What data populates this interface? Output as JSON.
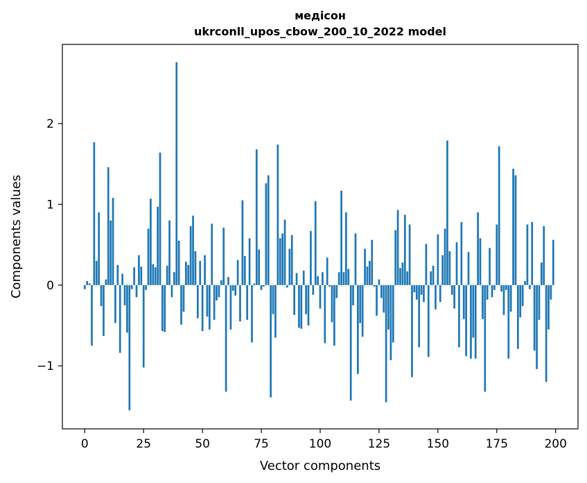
{
  "chart_data": {
    "type": "bar",
    "title": "медісон",
    "subtitle": "ukrconll_upos_cbow_200_10_2022 model",
    "xlabel": "Vector components",
    "ylabel": "Components values",
    "xlim": [
      -9.5,
      209.5
    ],
    "ylim": [
      -1.78,
      2.98
    ],
    "xticks": [
      0,
      25,
      50,
      75,
      100,
      125,
      150,
      175,
      200
    ],
    "xtick_labels": [
      "0",
      "25",
      "50",
      "75",
      "100",
      "125",
      "150",
      "175",
      "200"
    ],
    "yticks": [
      -1,
      0,
      1,
      2
    ],
    "ytick_labels": [
      "−1",
      "0",
      "1",
      "2"
    ],
    "bar_color": "#1f77b4",
    "grid": false,
    "x": [
      0,
      1,
      2,
      3,
      4,
      5,
      6,
      7,
      8,
      9,
      10,
      11,
      12,
      13,
      14,
      15,
      16,
      17,
      18,
      19,
      20,
      21,
      22,
      23,
      24,
      25,
      26,
      27,
      28,
      29,
      30,
      31,
      32,
      33,
      34,
      35,
      36,
      37,
      38,
      39,
      40,
      41,
      42,
      43,
      44,
      45,
      46,
      47,
      48,
      49,
      50,
      51,
      52,
      53,
      54,
      55,
      56,
      57,
      58,
      59,
      60,
      61,
      62,
      63,
      64,
      65,
      66,
      67,
      68,
      69,
      70,
      71,
      72,
      73,
      74,
      75,
      76,
      77,
      78,
      79,
      80,
      81,
      82,
      83,
      84,
      85,
      86,
      87,
      88,
      89,
      90,
      91,
      92,
      93,
      94,
      95,
      96,
      97,
      98,
      99,
      100,
      101,
      102,
      103,
      104,
      105,
      106,
      107,
      108,
      109,
      110,
      111,
      112,
      113,
      114,
      115,
      116,
      117,
      118,
      119,
      120,
      121,
      122,
      123,
      124,
      125,
      126,
      127,
      128,
      129,
      130,
      131,
      132,
      133,
      134,
      135,
      136,
      137,
      138,
      139,
      140,
      141,
      142,
      143,
      144,
      145,
      146,
      147,
      148,
      149,
      150,
      151,
      152,
      153,
      154,
      155,
      156,
      157,
      158,
      159,
      160,
      161,
      162,
      163,
      164,
      165,
      166,
      167,
      168,
      169,
      170,
      171,
      172,
      173,
      174,
      175,
      176,
      177,
      178,
      179,
      180,
      181,
      182,
      183,
      184,
      185,
      186,
      187,
      188,
      189,
      190,
      191,
      192,
      193,
      194,
      195,
      196,
      197,
      198,
      199
    ],
    "values": [
      -0.05,
      0.05,
      0.02,
      -0.75,
      1.77,
      0.3,
      0.9,
      -0.26,
      -0.63,
      0.07,
      1.46,
      0.8,
      1.08,
      -0.47,
      0.25,
      -0.84,
      0.14,
      -0.25,
      -0.59,
      -1.55,
      -0.05,
      0.22,
      -0.15,
      0.37,
      0.23,
      -1.02,
      -0.06,
      0.7,
      1.07,
      0.26,
      0.22,
      0.97,
      1.64,
      -0.57,
      -0.58,
      0.24,
      0.8,
      -0.15,
      0.16,
      2.76,
      0.55,
      -0.49,
      -0.33,
      0.29,
      0.25,
      0.73,
      0.86,
      0.42,
      -0.41,
      0.3,
      -0.57,
      0.37,
      -0.39,
      -0.55,
      0.76,
      -0.43,
      -0.19,
      -0.15,
      0.06,
      0.71,
      -1.32,
      0.1,
      -0.55,
      -0.07,
      -0.13,
      0.31,
      -0.45,
      1.05,
      0.36,
      -0.43,
      0.58,
      -0.71,
      0.02,
      1.68,
      0.44,
      -0.06,
      -0.02,
      1.26,
      1.36,
      -1.39,
      -0.36,
      -0.65,
      1.74,
      0.58,
      0.64,
      0.81,
      -0.03,
      0.45,
      0.62,
      -0.37,
      0.15,
      -0.53,
      -0.54,
      0.18,
      -0.36,
      -0.5,
      0.67,
      -0.12,
      1.04,
      0.11,
      -0.29,
      0.16,
      -0.72,
      0.34,
      -0.02,
      -0.46,
      -0.75,
      -0.16,
      0.16,
      1.17,
      0.16,
      0.9,
      0.2,
      -1.43,
      -0.25,
      0.64,
      -1.1,
      -0.47,
      -0.64,
      0.45,
      0.23,
      0.3,
      0.56,
      -0.02,
      -0.38,
      0.07,
      -0.16,
      -0.34,
      -1.45,
      -0.55,
      -0.93,
      -0.71,
      0.68,
      0.93,
      0.21,
      0.28,
      0.87,
      0.17,
      0.75,
      -1.14,
      -0.09,
      -0.18,
      -0.77,
      -0.12,
      -0.21,
      0.51,
      -0.89,
      0.17,
      0.24,
      -0.3,
      0.63,
      -0.21,
      0.37,
      0.7,
      1.79,
      0.42,
      -0.12,
      -0.29,
      0.53,
      -0.77,
      0.78,
      -0.42,
      -0.88,
      0.41,
      -0.91,
      -0.65,
      -0.91,
      0.9,
      0.58,
      -0.42,
      -1.32,
      -0.18,
      0.46,
      -0.15,
      -0.06,
      0.75,
      1.72,
      -0.08,
      -0.37,
      -0.06,
      -0.91,
      -0.33,
      1.44,
      1.36,
      -0.79,
      -0.4,
      -0.26,
      0.05,
      0.75,
      -0.05,
      0.78,
      -0.81,
      -1.04,
      -0.43,
      0.28,
      0.73,
      -1.2,
      -0.55,
      -0.18,
      0.56
    ]
  }
}
